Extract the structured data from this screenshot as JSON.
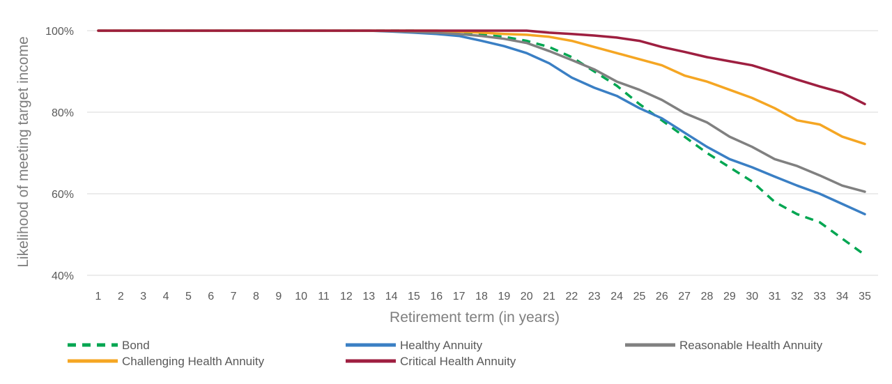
{
  "chart_data": {
    "type": "line",
    "title": "",
    "xlabel": "Retirement term (in years)",
    "ylabel": "Likelihood of meeting target income",
    "x": [
      1,
      2,
      3,
      4,
      5,
      6,
      7,
      8,
      9,
      10,
      11,
      12,
      13,
      14,
      15,
      16,
      17,
      18,
      19,
      20,
      21,
      22,
      23,
      24,
      25,
      26,
      27,
      28,
      29,
      30,
      31,
      32,
      33,
      34,
      35
    ],
    "ylim": [
      40,
      100
    ],
    "yticks": [
      40,
      60,
      80,
      100
    ],
    "ytick_labels": [
      "40%",
      "60%",
      "80%",
      "100%"
    ],
    "grid": true,
    "legend_position": "bottom",
    "series": [
      {
        "name": "Bond",
        "color": "#00a651",
        "style": "dashed",
        "values": [
          100,
          100,
          100,
          100,
          100,
          100,
          100,
          100,
          100,
          100,
          100,
          100,
          100,
          100,
          100,
          99.8,
          99.5,
          99,
          98.5,
          97.5,
          96,
          93.5,
          90,
          86.5,
          82,
          78,
          74,
          70,
          66.5,
          63,
          58,
          55,
          53,
          49,
          45
        ]
      },
      {
        "name": "Healthy Annuity",
        "color": "#3a7fc4",
        "style": "solid",
        "values": [
          100,
          100,
          100,
          100,
          100,
          100,
          100,
          100,
          100,
          100,
          100,
          100,
          100,
          99.8,
          99.5,
          99.2,
          98.7,
          97.5,
          96.2,
          94.5,
          92,
          88.5,
          86,
          84,
          81,
          78.5,
          75,
          71.5,
          68.5,
          66.5,
          64.2,
          62,
          60,
          57.5,
          55
        ]
      },
      {
        "name": "Reasonable Health Annuity",
        "color": "#808080",
        "style": "solid",
        "values": [
          100,
          100,
          100,
          100,
          100,
          100,
          100,
          100,
          100,
          100,
          100,
          100,
          100,
          99.9,
          99.7,
          99.5,
          99.2,
          98.7,
          98,
          97,
          95,
          92.8,
          90.5,
          87.5,
          85.5,
          83,
          79.8,
          77.5,
          74,
          71.5,
          68.5,
          66.8,
          64.5,
          62,
          60.5
        ]
      },
      {
        "name": "Challenging Health Annuity",
        "color": "#f5a623",
        "style": "solid",
        "values": [
          100,
          100,
          100,
          100,
          100,
          100,
          100,
          100,
          100,
          100,
          100,
          100,
          100,
          100,
          100,
          100,
          99.8,
          99.5,
          99.2,
          99,
          98.5,
          97.5,
          96,
          94.5,
          93,
          91.5,
          89,
          87.5,
          85.5,
          83.5,
          81,
          78,
          77,
          74,
          72.2
        ]
      },
      {
        "name": "Critical Health Annuity",
        "color": "#9e1f40",
        "style": "solid",
        "values": [
          100,
          100,
          100,
          100,
          100,
          100,
          100,
          100,
          100,
          100,
          100,
          100,
          100,
          100,
          100,
          100,
          100,
          100,
          100,
          100,
          99.5,
          99.2,
          98.8,
          98.3,
          97.5,
          96,
          94.8,
          93.5,
          92.5,
          91.5,
          89.8,
          88,
          86.3,
          84.8,
          82
        ]
      }
    ]
  }
}
